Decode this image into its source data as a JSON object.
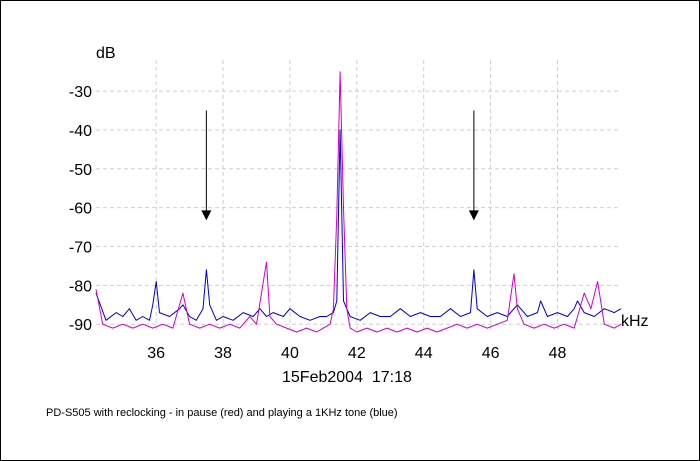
{
  "chart_data": {
    "type": "line",
    "ylabel": "dB",
    "xlabel": "kHz",
    "xlim": [
      34.2,
      49.9
    ],
    "ylim": [
      -92,
      -22
    ],
    "x_ticks": [
      36,
      38,
      40,
      42,
      44,
      46,
      48
    ],
    "y_ticks": [
      -30,
      -40,
      -50,
      -60,
      -70,
      -80,
      -90
    ],
    "grid": true,
    "timestamp": "15Feb2004  17:18",
    "caption": "PD-S505 with reclocking - in pause (red) and playing a 1KHz tone (blue)",
    "colors": {
      "blue": "#0000cc",
      "red": "#cc00cc"
    },
    "annotations": [
      {
        "type": "arrow",
        "x": 37.5,
        "y_from": -35,
        "y_to": -63
      },
      {
        "type": "arrow",
        "x": 45.5,
        "y_from": -35,
        "y_to": -63
      }
    ],
    "series": [
      {
        "color": "#0000cc",
        "points": [
          [
            34.2,
            -82
          ],
          [
            34.5,
            -89
          ],
          [
            34.8,
            -87
          ],
          [
            35.0,
            -88
          ],
          [
            35.2,
            -86
          ],
          [
            35.4,
            -89
          ],
          [
            35.6,
            -88
          ],
          [
            35.8,
            -89
          ],
          [
            35.9,
            -85
          ],
          [
            36.0,
            -79
          ],
          [
            36.1,
            -87
          ],
          [
            36.4,
            -88
          ],
          [
            36.7,
            -86
          ],
          [
            36.8,
            -85
          ],
          [
            37.0,
            -88
          ],
          [
            37.2,
            -89
          ],
          [
            37.4,
            -86
          ],
          [
            37.5,
            -76
          ],
          [
            37.6,
            -85
          ],
          [
            37.8,
            -89
          ],
          [
            38.0,
            -88
          ],
          [
            38.3,
            -89
          ],
          [
            38.6,
            -87
          ],
          [
            38.9,
            -88
          ],
          [
            39.1,
            -86
          ],
          [
            39.3,
            -88
          ],
          [
            39.5,
            -87
          ],
          [
            39.8,
            -88
          ],
          [
            40.0,
            -86
          ],
          [
            40.3,
            -88
          ],
          [
            40.6,
            -89
          ],
          [
            40.9,
            -88
          ],
          [
            41.1,
            -88
          ],
          [
            41.3,
            -87
          ],
          [
            41.4,
            -84
          ],
          [
            41.5,
            -40
          ],
          [
            41.6,
            -84
          ],
          [
            41.8,
            -88
          ],
          [
            42.1,
            -89
          ],
          [
            42.4,
            -87
          ],
          [
            42.7,
            -88
          ],
          [
            43.0,
            -88
          ],
          [
            43.3,
            -86
          ],
          [
            43.6,
            -88
          ],
          [
            43.9,
            -87
          ],
          [
            44.2,
            -88
          ],
          [
            44.5,
            -88
          ],
          [
            44.8,
            -86
          ],
          [
            45.1,
            -88
          ],
          [
            45.4,
            -87
          ],
          [
            45.5,
            -76
          ],
          [
            45.6,
            -86
          ],
          [
            45.9,
            -88
          ],
          [
            46.2,
            -87
          ],
          [
            46.5,
            -88
          ],
          [
            46.8,
            -85
          ],
          [
            47.1,
            -88
          ],
          [
            47.4,
            -87
          ],
          [
            47.5,
            -84
          ],
          [
            47.7,
            -88
          ],
          [
            48.0,
            -87
          ],
          [
            48.3,
            -88
          ],
          [
            48.5,
            -86
          ],
          [
            48.6,
            -84
          ],
          [
            48.8,
            -87
          ],
          [
            49.1,
            -88
          ],
          [
            49.4,
            -86
          ],
          [
            49.7,
            -87
          ],
          [
            49.9,
            -86
          ]
        ]
      },
      {
        "color": "#cc00cc",
        "points": [
          [
            34.2,
            -81
          ],
          [
            34.4,
            -90
          ],
          [
            34.7,
            -91
          ],
          [
            35.0,
            -90
          ],
          [
            35.3,
            -91
          ],
          [
            35.6,
            -90
          ],
          [
            35.9,
            -91
          ],
          [
            36.2,
            -90
          ],
          [
            36.5,
            -91
          ],
          [
            36.8,
            -82
          ],
          [
            37.0,
            -90
          ],
          [
            37.3,
            -91
          ],
          [
            37.6,
            -90
          ],
          [
            37.9,
            -91
          ],
          [
            38.2,
            -90
          ],
          [
            38.5,
            -91
          ],
          [
            38.8,
            -88
          ],
          [
            39.0,
            -90
          ],
          [
            39.3,
            -74
          ],
          [
            39.4,
            -88
          ],
          [
            39.6,
            -90
          ],
          [
            39.9,
            -91
          ],
          [
            40.2,
            -92
          ],
          [
            40.5,
            -91
          ],
          [
            40.8,
            -92
          ],
          [
            41.0,
            -91
          ],
          [
            41.2,
            -90
          ],
          [
            41.3,
            -86
          ],
          [
            41.4,
            -62
          ],
          [
            41.5,
            -25
          ],
          [
            41.6,
            -60
          ],
          [
            41.7,
            -86
          ],
          [
            41.8,
            -91
          ],
          [
            42.0,
            -92
          ],
          [
            42.3,
            -91
          ],
          [
            42.6,
            -92
          ],
          [
            42.9,
            -91
          ],
          [
            43.2,
            -92
          ],
          [
            43.5,
            -91
          ],
          [
            43.8,
            -92
          ],
          [
            44.1,
            -91
          ],
          [
            44.4,
            -92
          ],
          [
            44.7,
            -91
          ],
          [
            45.0,
            -90
          ],
          [
            45.3,
            -91
          ],
          [
            45.6,
            -90
          ],
          [
            45.9,
            -91
          ],
          [
            46.2,
            -90
          ],
          [
            46.5,
            -89
          ],
          [
            46.7,
            -77
          ],
          [
            46.8,
            -86
          ],
          [
            47.0,
            -90
          ],
          [
            47.3,
            -91
          ],
          [
            47.6,
            -90
          ],
          [
            47.9,
            -91
          ],
          [
            48.2,
            -90
          ],
          [
            48.5,
            -91
          ],
          [
            48.8,
            -82
          ],
          [
            49.0,
            -86
          ],
          [
            49.2,
            -79
          ],
          [
            49.4,
            -90
          ],
          [
            49.7,
            -91
          ],
          [
            49.9,
            -90
          ]
        ]
      }
    ]
  }
}
